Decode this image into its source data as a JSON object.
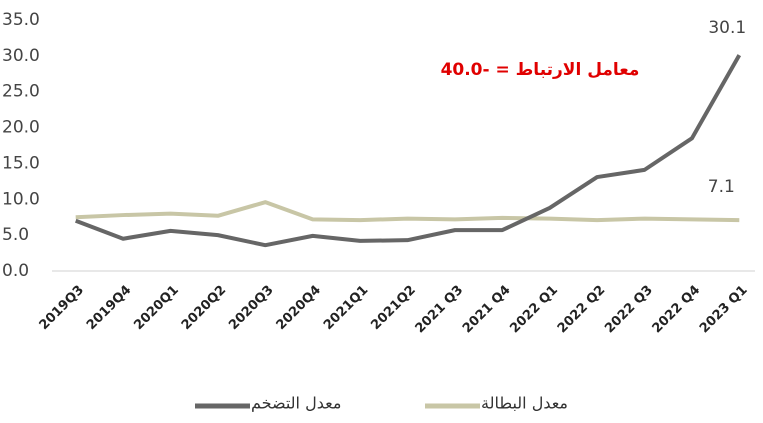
{
  "chart_data": {
    "type": "line",
    "annotation": "40.0- = معامل الارتباط",
    "categories": [
      "2019Q3",
      "2019Q4",
      "2020Q1",
      "2020Q2",
      "2020Q3",
      "2020Q4",
      "2021Q1",
      "2021Q2",
      "2021 Q3",
      "2021 Q4",
      "2022 Q1",
      "2022 Q2",
      "2022 Q3",
      "2022 Q4",
      "2023 Q1"
    ],
    "series": [
      {
        "name": "معدل التضخم",
        "color": "#666666",
        "values": [
          7.0,
          4.5,
          5.6,
          5.0,
          3.6,
          4.9,
          4.2,
          4.3,
          5.7,
          5.7,
          8.8,
          13.1,
          14.1,
          18.5,
          30.1
        ]
      },
      {
        "name": "معدل البطالة",
        "color": "#c8c6a6",
        "values": [
          7.5,
          7.8,
          8.0,
          7.7,
          9.6,
          7.2,
          7.1,
          7.3,
          7.2,
          7.4,
          7.3,
          7.1,
          7.3,
          7.2,
          7.1
        ]
      }
    ],
    "ylim": [
      0,
      35
    ],
    "yticks": [
      {
        "value": 0,
        "label": "0.0"
      },
      {
        "value": 5,
        "label": "5.0"
      },
      {
        "value": 10,
        "label": "10.0"
      },
      {
        "value": 15,
        "label": "15.0"
      },
      {
        "value": 20,
        "label": "20.0"
      },
      {
        "value": 25,
        "label": "25.0"
      },
      {
        "value": 30,
        "label": "30.0"
      },
      {
        "value": 35,
        "label": "35.0"
      }
    ],
    "legend": "bottom"
  }
}
